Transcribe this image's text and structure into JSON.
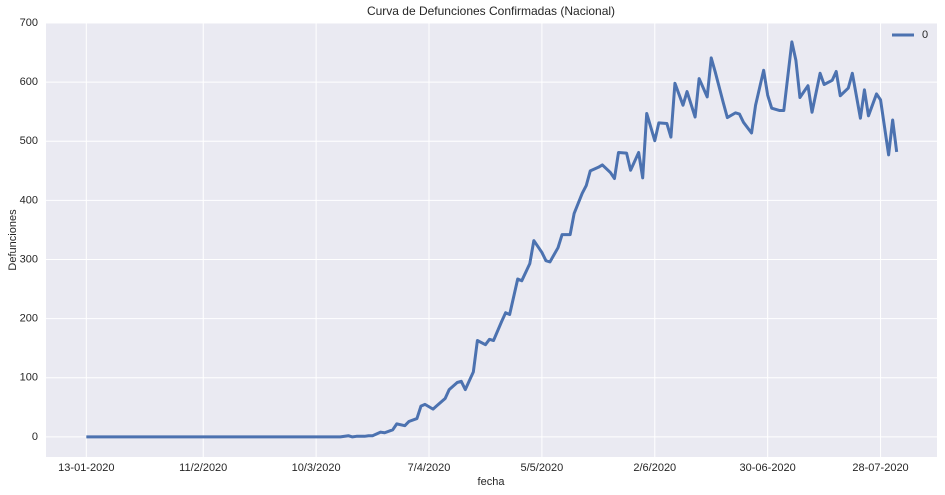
{
  "chart_data": {
    "type": "line",
    "title": "Curva de Defunciones Confirmadas (Nacional)",
    "xlabel": "fecha",
    "ylabel": "Defunciones",
    "x": [
      "2020-01-13",
      "2020-03-16",
      "2020-03-18",
      "2020-03-19",
      "2020-03-20",
      "2020-03-22",
      "2020-03-23",
      "2020-03-24",
      "2020-03-26",
      "2020-03-27",
      "2020-03-29",
      "2020-03-30",
      "2020-04-01",
      "2020-04-02",
      "2020-04-04",
      "2020-04-05",
      "2020-04-06",
      "2020-04-08",
      "2020-04-09",
      "2020-04-11",
      "2020-04-12",
      "2020-04-14",
      "2020-04-15",
      "2020-04-16",
      "2020-04-18",
      "2020-04-19",
      "2020-04-21",
      "2020-04-22",
      "2020-04-23",
      "2020-04-25",
      "2020-04-26",
      "2020-04-27",
      "2020-04-29",
      "2020-04-30",
      "2020-05-02",
      "2020-05-03",
      "2020-05-05",
      "2020-05-06",
      "2020-05-07",
      "2020-05-09",
      "2020-05-10",
      "2020-05-12",
      "2020-05-13",
      "2020-05-15",
      "2020-05-16",
      "2020-05-17",
      "2020-05-19",
      "2020-05-20",
      "2020-05-22",
      "2020-05-23",
      "2020-05-24",
      "2020-05-26",
      "2020-05-27",
      "2020-05-29",
      "2020-05-30",
      "2020-05-31",
      "2020-06-02",
      "2020-06-03",
      "2020-06-05",
      "2020-06-06",
      "2020-06-07",
      "2020-06-09",
      "2020-06-10",
      "2020-06-12",
      "2020-06-13",
      "2020-06-15",
      "2020-06-16",
      "2020-06-17",
      "2020-06-19",
      "2020-06-20",
      "2020-06-22",
      "2020-06-23",
      "2020-06-24",
      "2020-06-26",
      "2020-06-27",
      "2020-06-29",
      "2020-06-30",
      "2020-07-01",
      "2020-07-03",
      "2020-07-04",
      "2020-07-06",
      "2020-07-07",
      "2020-07-08",
      "2020-07-10",
      "2020-07-11",
      "2020-07-13",
      "2020-07-14",
      "2020-07-16",
      "2020-07-17",
      "2020-07-18",
      "2020-07-20",
      "2020-07-21",
      "2020-07-23",
      "2020-07-24",
      "2020-07-25",
      "2020-07-27",
      "2020-07-28",
      "2020-07-30",
      "2020-07-31",
      "2020-08-01"
    ],
    "series": [
      {
        "name": "0",
        "color": "#4c72b0",
        "values": [
          0,
          0,
          2,
          0,
          1,
          1,
          2,
          2,
          8,
          7,
          12,
          22,
          19,
          26,
          31,
          52,
          55,
          47,
          53,
          65,
          80,
          92,
          94,
          80,
          110,
          163,
          156,
          165,
          163,
          195,
          210,
          207,
          267,
          264,
          293,
          332,
          312,
          298,
          296,
          320,
          342,
          342,
          378,
          412,
          425,
          450,
          456,
          460,
          447,
          437,
          481,
          480,
          451,
          481,
          438,
          547,
          501,
          531,
          530,
          507,
          598,
          561,
          584,
          541,
          606,
          575,
          641,
          617,
          565,
          540,
          548,
          546,
          532,
          514,
          561,
          620,
          578,
          556,
          552,
          552,
          668,
          637,
          574,
          594,
          549,
          615,
          596,
          603,
          618,
          577,
          590,
          615,
          539,
          587,
          543,
          580,
          570,
          477,
          536,
          482
        ]
      }
    ],
    "xlim": [
      "2020-01-03",
      "2020-08-11"
    ],
    "xticks": [
      {
        "value": "2020-01-13",
        "label": "13-01-2020"
      },
      {
        "value": "2020-02-11",
        "label": "11/2/2020"
      },
      {
        "value": "2020-03-10",
        "label": "10/3/2020"
      },
      {
        "value": "2020-04-07",
        "label": "7/4/2020"
      },
      {
        "value": "2020-05-05",
        "label": "5/5/2020"
      },
      {
        "value": "2020-06-02",
        "label": "2/6/2020"
      },
      {
        "value": "2020-06-30",
        "label": "30-06-2020"
      },
      {
        "value": "2020-07-28",
        "label": "28-07-2020"
      }
    ],
    "ylim": [
      -34,
      700
    ],
    "yticks": [
      0,
      100,
      200,
      300,
      400,
      500,
      600,
      700
    ],
    "grid": true,
    "legend": "upper right"
  }
}
